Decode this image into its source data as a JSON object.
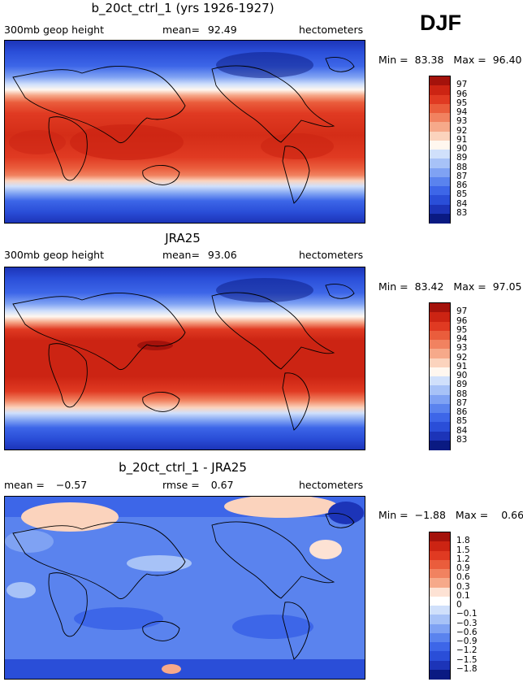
{
  "season": "DJF",
  "colors": {
    "sequential": [
      "#0a1a82",
      "#1c34b8",
      "#2a4ed8",
      "#3d66e8",
      "#5a83ee",
      "#7fa2f3",
      "#a7c2f7",
      "#d0e0fb",
      "#fff7ef",
      "#fbd3bd",
      "#f6a98a",
      "#f18260",
      "#ea5d3c",
      "#e03a22",
      "#cc2413",
      "#a4120b"
    ],
    "difference": [
      "#0a1a82",
      "#1c34b8",
      "#2a4ed8",
      "#3d66e8",
      "#5a83ee",
      "#7fa2f3",
      "#a7c2f7",
      "#d0e0fb",
      "#ffffff",
      "#fde2d4",
      "#f6a98a",
      "#f18260",
      "#ea5d3c",
      "#e03a22",
      "#cc2413",
      "#a4120b"
    ]
  },
  "chart_data": [
    {
      "type": "heatmap",
      "title": "b_20ct_ctrl_1 (yrs 1926-1927)",
      "variable": "300mb geop height",
      "mean_label": "mean=",
      "mean": "92.49",
      "units": "hectometers",
      "min_label": "Min =",
      "min": "83.38",
      "max_label": "Max =",
      "max": "96.40",
      "levels": [
        "83",
        "84",
        "85",
        "86",
        "87",
        "88",
        "89",
        "90",
        "91",
        "92",
        "93",
        "94",
        "95",
        "96",
        "97"
      ],
      "palette": "sequential"
    },
    {
      "type": "heatmap",
      "title": "JRA25",
      "variable": "300mb geop height",
      "mean_label": "mean=",
      "mean": "93.06",
      "units": "hectometers",
      "min_label": "Min =",
      "min": "83.42",
      "max_label": "Max =",
      "max": "97.05",
      "levels": [
        "83",
        "84",
        "85",
        "86",
        "87",
        "88",
        "89",
        "90",
        "91",
        "92",
        "93",
        "94",
        "95",
        "96",
        "97"
      ],
      "palette": "sequential"
    },
    {
      "type": "heatmap",
      "title": "b_20ct_ctrl_1 - JRA25",
      "mean_label": "mean =",
      "mean": "-0.57",
      "rmse_label": "rmse =",
      "rmse": "0.67",
      "units": "hectometers",
      "min_label": "Min =",
      "min": "-1.88",
      "max_label": "Max =",
      "max": "0.66",
      "levels": [
        "-1.8",
        "-1.5",
        "-1.2",
        "-0.9",
        "-0.6",
        "-0.3",
        "-0.1",
        "0",
        "0.1",
        "0.3",
        "0.6",
        "0.9",
        "1.2",
        "1.5",
        "1.8"
      ],
      "palette": "difference"
    }
  ]
}
